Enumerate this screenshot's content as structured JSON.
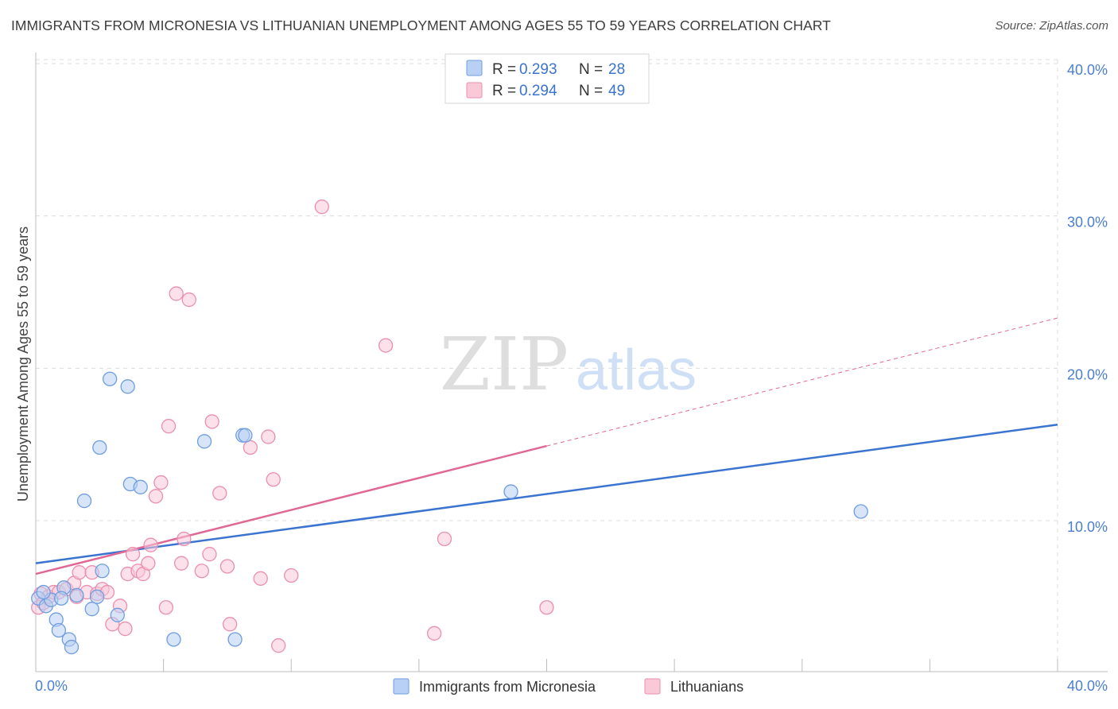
{
  "header": {
    "title": "IMMIGRANTS FROM MICRONESIA VS LITHUANIAN UNEMPLOYMENT AMONG AGES 55 TO 59 YEARS CORRELATION CHART",
    "source": "Source: ZipAtlas.com"
  },
  "watermark": {
    "zip": "ZIP",
    "atlas": "atlas"
  },
  "colors": {
    "blue_fill": "#b8d0f3",
    "blue_stroke": "#6f9de0",
    "blue_line": "#3a74d0",
    "pink_fill": "#f9c9d8",
    "pink_stroke": "#ea8fae",
    "pink_line": "#e06894",
    "grid": "#dcdcdc",
    "tick_text": "#4a7fd0"
  },
  "legend": {
    "r_label": "R =",
    "n_label": "N =",
    "rows": [
      {
        "r": "0.293",
        "n": "28",
        "color": "blue"
      },
      {
        "r": "0.294",
        "n": "49",
        "color": "pink"
      }
    ]
  },
  "bottom_legend": [
    {
      "label": "Immigrants from Micronesia",
      "color": "blue"
    },
    {
      "label": "Lithuanians",
      "color": "pink"
    }
  ],
  "chart_data": {
    "type": "scatter",
    "title": "IMMIGRANTS FROM MICRONESIA VS LITHUANIAN UNEMPLOYMENT AMONG AGES 55 TO 59 YEARS CORRELATION CHART",
    "xlabel": "",
    "ylabel": "Unemployment Among Ages 55 to 59 years",
    "xlim": [
      0,
      40
    ],
    "ylim": [
      0,
      40
    ],
    "x_tick_labels": [
      "0.0%",
      "40.0%"
    ],
    "y_ticks": [
      {
        "value": 10,
        "label": "10.0%"
      },
      {
        "value": 20,
        "label": "20.0%"
      },
      {
        "value": 30,
        "label": "30.0%"
      },
      {
        "value": 40,
        "label": "40.0%"
      }
    ],
    "series": [
      {
        "name": "Immigrants from Micronesia",
        "color": "blue",
        "r": 0.293,
        "n": 28,
        "trend": {
          "x0": 0,
          "y0": 7.2,
          "x1": 40,
          "y1": 16.3,
          "dashed_from": null
        },
        "points": [
          [
            0.1,
            4.9
          ],
          [
            0.4,
            4.4
          ],
          [
            0.6,
            4.8
          ],
          [
            0.8,
            3.5
          ],
          [
            0.9,
            2.8
          ],
          [
            1.1,
            5.6
          ],
          [
            1.3,
            2.2
          ],
          [
            1.4,
            1.7
          ],
          [
            1.6,
            5.1
          ],
          [
            1.9,
            11.3
          ],
          [
            2.2,
            4.2
          ],
          [
            2.5,
            14.8
          ],
          [
            2.6,
            6.7
          ],
          [
            2.9,
            19.3
          ],
          [
            3.2,
            3.8
          ],
          [
            3.6,
            18.8
          ],
          [
            3.7,
            12.4
          ],
          [
            4.1,
            12.2
          ],
          [
            5.4,
            2.2
          ],
          [
            6.6,
            15.2
          ],
          [
            7.8,
            2.2
          ],
          [
            8.1,
            15.6
          ],
          [
            8.2,
            15.6
          ],
          [
            18.6,
            11.9
          ],
          [
            32.3,
            10.6
          ],
          [
            0.3,
            5.3
          ],
          [
            2.4,
            5.0
          ],
          [
            1.0,
            4.9
          ]
        ]
      },
      {
        "name": "Lithuanians",
        "color": "pink",
        "r": 0.294,
        "n": 49,
        "trend": {
          "x0": 0,
          "y0": 6.5,
          "x1": 40,
          "y1": 23.3,
          "dashed_from": 20
        },
        "points": [
          [
            0.1,
            4.3
          ],
          [
            0.2,
            5.2
          ],
          [
            0.3,
            4.6
          ],
          [
            0.5,
            5.0
          ],
          [
            0.7,
            5.3
          ],
          [
            0.9,
            5.3
          ],
          [
            1.2,
            5.5
          ],
          [
            1.5,
            5.9
          ],
          [
            1.6,
            5.0
          ],
          [
            1.7,
            6.6
          ],
          [
            2.0,
            5.3
          ],
          [
            2.2,
            6.6
          ],
          [
            2.4,
            5.2
          ],
          [
            2.6,
            5.5
          ],
          [
            2.8,
            5.3
          ],
          [
            3.0,
            3.2
          ],
          [
            3.3,
            4.4
          ],
          [
            3.5,
            2.9
          ],
          [
            3.6,
            6.5
          ],
          [
            3.8,
            7.8
          ],
          [
            4.0,
            6.7
          ],
          [
            4.2,
            6.5
          ],
          [
            4.4,
            7.2
          ],
          [
            4.5,
            8.4
          ],
          [
            4.7,
            11.6
          ],
          [
            4.9,
            12.5
          ],
          [
            5.1,
            4.3
          ],
          [
            5.2,
            16.2
          ],
          [
            5.5,
            24.9
          ],
          [
            5.7,
            7.2
          ],
          [
            5.8,
            8.8
          ],
          [
            6.0,
            24.5
          ],
          [
            6.5,
            6.7
          ],
          [
            6.8,
            7.8
          ],
          [
            6.9,
            16.5
          ],
          [
            7.2,
            11.8
          ],
          [
            7.5,
            7.0
          ],
          [
            7.6,
            3.2
          ],
          [
            8.4,
            14.8
          ],
          [
            8.8,
            6.2
          ],
          [
            9.1,
            15.5
          ],
          [
            9.3,
            12.7
          ],
          [
            9.5,
            1.8
          ],
          [
            10.0,
            6.4
          ],
          [
            11.2,
            30.6
          ],
          [
            13.7,
            21.5
          ],
          [
            15.6,
            2.6
          ],
          [
            16.0,
            8.8
          ],
          [
            20.0,
            4.3
          ]
        ]
      }
    ]
  }
}
